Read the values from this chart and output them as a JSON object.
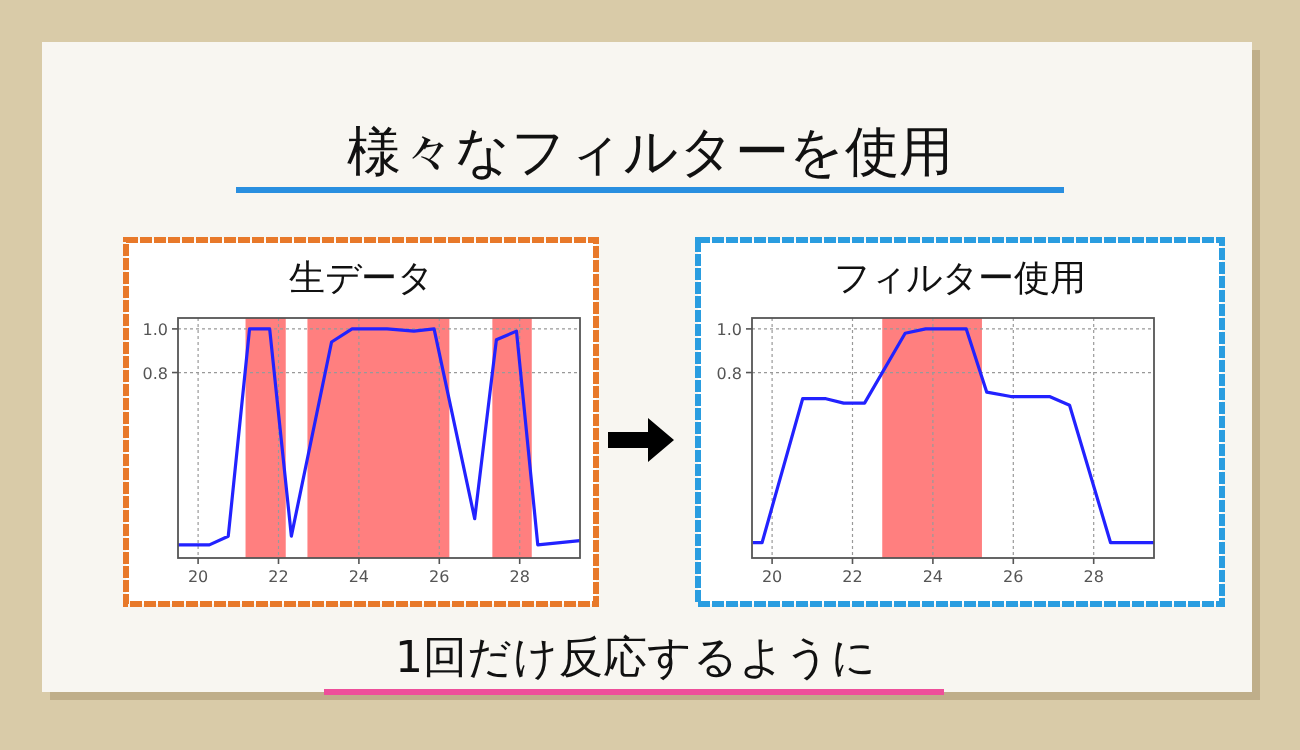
{
  "chart_data": [
    {
      "type": "other",
      "title": "様々なフィルターを使用",
      "annotations": [
        "1回だけ反応するように"
      ]
    },
    {
      "type": "line",
      "title": "生データ",
      "x": [
        19.5,
        20.28,
        20.75,
        21.28,
        21.78,
        22.32,
        23.32,
        23.83,
        24.7,
        25.37,
        25.87,
        26.88,
        27.42,
        27.92,
        28.45,
        29.5
      ],
      "series": [
        {
          "color": "#2222ff",
          "values": [
            0.01,
            0.01,
            0.05,
            1.0,
            1.0,
            0.05,
            0.94,
            1.0,
            1.0,
            0.99,
            1.0,
            0.13,
            0.95,
            0.99,
            0.01,
            0.03
          ]
        }
      ],
      "bands": [
        {
          "axis": "x",
          "from": 21.18,
          "to": 22.18,
          "color": "#ff7f7f"
        },
        {
          "axis": "x",
          "from": 22.72,
          "to": 26.25,
          "color": "#ff7f7f"
        },
        {
          "axis": "x",
          "from": 27.32,
          "to": 28.3,
          "color": "#ff7f7f"
        }
      ],
      "xlim": [
        19.5,
        29.5
      ],
      "ylim": [
        -0.05,
        1.05
      ],
      "xticks": [
        20,
        22,
        24,
        26,
        28
      ],
      "yticks": [
        0.8,
        {
          "value": 1,
          "label": "1.0"
        }
      ],
      "grid": true
    },
    {
      "type": "line",
      "title": "フィルター使用",
      "x": [
        19.52,
        19.75,
        20.76,
        21.34,
        21.78,
        22.3,
        23.31,
        23.82,
        24.83,
        25.34,
        25.94,
        26.9,
        27.4,
        28.42,
        29.5
      ],
      "series": [
        {
          "color": "#2222ff",
          "values": [
            0.02,
            0.02,
            0.68,
            0.68,
            0.66,
            0.66,
            0.98,
            1.0,
            1.0,
            0.71,
            0.69,
            0.69,
            0.65,
            0.02,
            0.02
          ]
        }
      ],
      "bands": [
        {
          "axis": "x",
          "from": 22.74,
          "to": 25.22,
          "color": "#ff7f7f"
        }
      ],
      "xlim": [
        19.5,
        29.5
      ],
      "ylim": [
        -0.05,
        1.05
      ],
      "xticks": [
        20,
        22,
        24,
        26,
        28
      ],
      "yticks": [
        0.8,
        {
          "value": 1,
          "label": "1.0"
        }
      ],
      "grid": true
    }
  ]
}
